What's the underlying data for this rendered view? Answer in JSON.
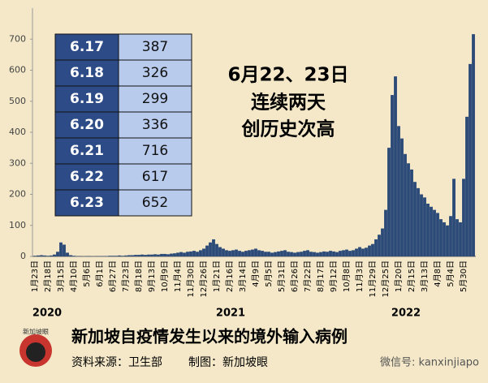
{
  "chart_data": {
    "type": "bar",
    "title": "新加坡自疫情发生以来的境外输入病例",
    "annotation": [
      "6月22、23日",
      "连续两天",
      "创历史次高"
    ],
    "years": [
      "2020",
      "2021",
      "2022"
    ],
    "color": "#2b4a78",
    "ylim": [
      0,
      800
    ],
    "yticks": [
      0,
      100,
      200,
      300,
      400,
      500,
      600,
      700
    ],
    "categories": [
      "1月23日",
      null,
      null,
      null,
      "2月18日",
      null,
      null,
      null,
      "3月15日",
      null,
      null,
      null,
      "4月10日",
      null,
      null,
      null,
      "5月6日",
      null,
      null,
      null,
      "6月1日",
      null,
      null,
      null,
      "6月27日",
      null,
      null,
      null,
      "7月23日",
      null,
      null,
      null,
      "8月18日",
      null,
      null,
      null,
      "9月13日",
      null,
      null,
      null,
      "10月9日",
      null,
      null,
      null,
      "11月4日",
      null,
      null,
      null,
      "11月30日",
      null,
      null,
      null,
      "12月26日",
      null,
      null,
      null,
      "1月21日",
      null,
      null,
      null,
      "2月16日",
      null,
      null,
      null,
      "3月14日",
      null,
      null,
      null,
      "4月9日",
      null,
      null,
      null,
      "5月5日",
      null,
      null,
      null,
      "5月31日",
      null,
      null,
      null,
      "6月26日",
      null,
      null,
      null,
      "7月22日",
      null,
      null,
      null,
      "8月17日",
      null,
      null,
      null,
      "9月12日",
      null,
      null,
      null,
      "10月8日",
      null,
      null,
      null,
      "11月3日",
      null,
      null,
      null,
      "11月29日",
      null,
      null,
      null,
      "12月25日",
      null,
      null,
      null,
      "1月20日",
      null,
      null,
      null,
      "2月15日",
      null,
      null,
      null,
      "3月13日",
      null,
      null,
      null,
      "4月8日",
      null,
      null,
      null,
      "5月4日",
      null,
      null,
      null,
      "5月30日",
      null,
      null,
      null
    ],
    "values": [
      2,
      3,
      4,
      3,
      2,
      3,
      6,
      15,
      45,
      38,
      12,
      4,
      2,
      1,
      1,
      0,
      1,
      1,
      0,
      1,
      1,
      1,
      1,
      2,
      2,
      2,
      3,
      2,
      3,
      4,
      4,
      5,
      5,
      6,
      5,
      6,
      6,
      7,
      6,
      8,
      8,
      7,
      9,
      10,
      12,
      14,
      12,
      15,
      16,
      18,
      15,
      20,
      25,
      35,
      45,
      55,
      40,
      30,
      25,
      20,
      18,
      20,
      22,
      18,
      15,
      18,
      20,
      22,
      25,
      20,
      18,
      15,
      15,
      12,
      14,
      16,
      18,
      20,
      15,
      14,
      12,
      14,
      15,
      18,
      20,
      15,
      14,
      12,
      14,
      16,
      15,
      18,
      16,
      14,
      18,
      20,
      22,
      18,
      20,
      25,
      30,
      25,
      28,
      35,
      40,
      55,
      70,
      90,
      150,
      350,
      520,
      580,
      420,
      380,
      330,
      300,
      280,
      240,
      220,
      200,
      190,
      170,
      160,
      150,
      140,
      120,
      110,
      100,
      130,
      250,
      120,
      110,
      250,
      450,
      620,
      716
    ]
  },
  "table": {
    "rows": [
      [
        "6.17",
        387
      ],
      [
        "6.18",
        326
      ],
      [
        "6.19",
        299
      ],
      [
        "6.20",
        336
      ],
      [
        "6.21",
        716
      ],
      [
        "6.22",
        617
      ],
      [
        "6.23",
        652
      ]
    ]
  },
  "footer": {
    "source": "资料来源：卫生部",
    "credit": "制图：新加坡眼",
    "logo": "新加坡眼",
    "watermark": "微信号: kanxinjiapo"
  }
}
